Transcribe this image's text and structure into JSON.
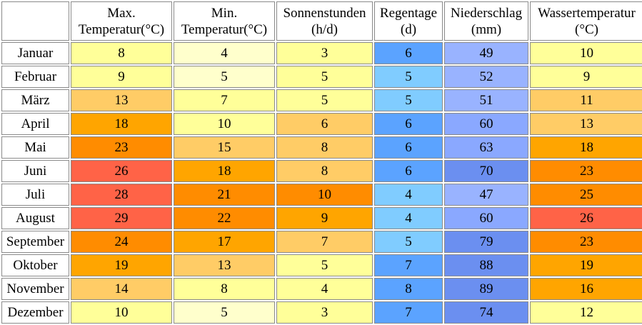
{
  "chart_data": {
    "type": "table",
    "columns": [
      {
        "key": "max_temp",
        "line1": "Max.",
        "line2": "Temperatur(°C)"
      },
      {
        "key": "min_temp",
        "line1": "Min.",
        "line2": "Temperatur(°C)"
      },
      {
        "key": "sun_hours",
        "line1": "Sonnenstunden",
        "line2": "(h/d)"
      },
      {
        "key": "rain_days",
        "line1": "Regentage",
        "line2": "(d)"
      },
      {
        "key": "precip",
        "line1": "Niederschlag",
        "line2": "(mm)"
      },
      {
        "key": "water_temp",
        "line1": "Wassertemperatur",
        "line2": "(°C)"
      }
    ],
    "rows": [
      {
        "month": "Januar",
        "values": [
          8,
          4,
          3,
          6,
          49,
          10
        ]
      },
      {
        "month": "Februar",
        "values": [
          9,
          5,
          5,
          5,
          52,
          9
        ]
      },
      {
        "month": "März",
        "values": [
          13,
          7,
          5,
          5,
          51,
          11
        ]
      },
      {
        "month": "April",
        "values": [
          18,
          10,
          6,
          6,
          60,
          13
        ]
      },
      {
        "month": "Mai",
        "values": [
          23,
          15,
          8,
          6,
          63,
          18
        ]
      },
      {
        "month": "Juni",
        "values": [
          26,
          18,
          8,
          6,
          70,
          23
        ]
      },
      {
        "month": "Juli",
        "values": [
          28,
          21,
          10,
          4,
          47,
          25
        ]
      },
      {
        "month": "August",
        "values": [
          29,
          22,
          9,
          4,
          60,
          26
        ]
      },
      {
        "month": "September",
        "values": [
          24,
          17,
          7,
          5,
          79,
          23
        ]
      },
      {
        "month": "Oktober",
        "values": [
          19,
          13,
          5,
          7,
          88,
          19
        ]
      },
      {
        "month": "November",
        "values": [
          14,
          8,
          4,
          8,
          89,
          16
        ]
      },
      {
        "month": "Dezember",
        "values": [
          10,
          5,
          3,
          7,
          74,
          12
        ]
      }
    ],
    "cell_colors": [
      [
        "#ffff99",
        "#ffffcc",
        "#ffff99",
        "#5ba3ff",
        "#99b3ff",
        "#ffff99"
      ],
      [
        "#ffff99",
        "#ffffcc",
        "#ffff99",
        "#80ccff",
        "#99b3ff",
        "#ffff99"
      ],
      [
        "#ffcc66",
        "#ffff99",
        "#ffff99",
        "#80ccff",
        "#99b3ff",
        "#ffcc66"
      ],
      [
        "#ffa500",
        "#ffff99",
        "#ffcc66",
        "#5ba3ff",
        "#8aa8ff",
        "#ffcc66"
      ],
      [
        "#ff8c00",
        "#ffcc66",
        "#ffcc66",
        "#5ba3ff",
        "#8aa8ff",
        "#ffa500"
      ],
      [
        "#ff6347",
        "#ffa500",
        "#ffcc66",
        "#5ba3ff",
        "#6b8ff0",
        "#ff8c00"
      ],
      [
        "#ff6347",
        "#ff8c00",
        "#ff8c00",
        "#80ccff",
        "#99b3ff",
        "#ff8c00"
      ],
      [
        "#ff6347",
        "#ff8c00",
        "#ffa500",
        "#80ccff",
        "#8aa8ff",
        "#ff6347"
      ],
      [
        "#ff8c00",
        "#ffa500",
        "#ffcc66",
        "#80ccff",
        "#6b8ff0",
        "#ff8c00"
      ],
      [
        "#ffa500",
        "#ffcc66",
        "#ffff99",
        "#5ba3ff",
        "#6b8ff0",
        "#ffa500"
      ],
      [
        "#ffcc66",
        "#ffff99",
        "#ffff99",
        "#5ba3ff",
        "#6b8ff0",
        "#ffa500"
      ],
      [
        "#ffff99",
        "#ffffcc",
        "#ffff99",
        "#5ba3ff",
        "#6b8ff0",
        "#ffff99"
      ]
    ]
  }
}
